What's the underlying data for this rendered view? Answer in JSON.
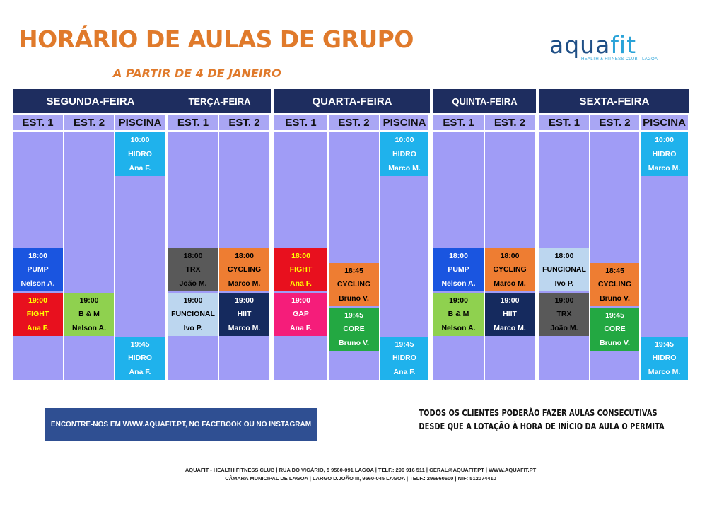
{
  "header": {
    "title": "HORÁRIO DE AULAS DE GRUPO",
    "subtitle": "A PARTIR DE 4 DE JANEIRO"
  },
  "logo": {
    "word_a": "aqua",
    "word_b": "fit",
    "tagline": "HEALTH & FITNESS CLUB · LAGOA"
  },
  "colors": {
    "header_navy": "#1e2d5f",
    "column_bg": "#a09cf6",
    "title_orange": "#e07a2b"
  },
  "schedule": {
    "days": [
      {
        "name": "SEGUNDA-FEIRA",
        "columns": [
          {
            "label": "EST. 1",
            "classes": [
              {
                "lines": [
                  "18:00",
                  "PUMP",
                  "Nelson A."
                ],
                "bg": "#1a55e0",
                "fg": "#ffffff"
              },
              {
                "lines": [
                  "19:00",
                  "FIGHT",
                  "Ana F."
                ],
                "bg": "#e8101e",
                "fg": "#ffff00"
              }
            ]
          },
          {
            "label": "EST. 2",
            "classes": [
              {
                "lines": [
                  "19:00",
                  "B & M",
                  "Nelson A."
                ],
                "bg": "#8fd14f",
                "fg": "#000000"
              }
            ]
          },
          {
            "label": "PISCINA",
            "classes": [
              {
                "lines": [
                  "10:00",
                  "HIDRO",
                  "Ana F."
                ],
                "bg": "#1fb2ec",
                "fg": "#ffffff"
              },
              {
                "lines": [
                  "19:45",
                  "HIDRO",
                  "Ana F."
                ],
                "bg": "#1fb2ec",
                "fg": "#ffffff"
              }
            ]
          }
        ]
      },
      {
        "name": "TERÇA-FEIRA",
        "columns": [
          {
            "label": "EST. 1",
            "classes": [
              {
                "lines": [
                  "18:00",
                  "TRX",
                  "João M."
                ],
                "bg": "#595959",
                "fg": "#000000"
              },
              {
                "lines": [
                  "19:00",
                  "FUNCIONAL",
                  "Ivo P."
                ],
                "bg": "#bcd6ef",
                "fg": "#000000"
              }
            ]
          },
          {
            "label": "EST. 2",
            "classes": [
              {
                "lines": [
                  "18:00",
                  "CYCLING",
                  "Marco M."
                ],
                "bg": "#ee7d32",
                "fg": "#000000"
              },
              {
                "lines": [
                  "19:00",
                  "HIIT",
                  "Marco M."
                ],
                "bg": "#152a5e",
                "fg": "#ffffff"
              }
            ]
          }
        ]
      },
      {
        "name": "QUARTA-FEIRA",
        "columns": [
          {
            "label": "EST. 1",
            "classes": [
              {
                "lines": [
                  "18:00",
                  "FIGHT",
                  "Ana F."
                ],
                "bg": "#e8101e",
                "fg": "#ffff00"
              },
              {
                "lines": [
                  "19:00",
                  "GAP",
                  "Ana F."
                ],
                "bg": "#f51d7a",
                "fg": "#ffffff"
              }
            ]
          },
          {
            "label": "EST. 2",
            "classes": [
              {
                "lines": [
                  "18:45",
                  "CYCLING",
                  "Bruno V."
                ],
                "bg": "#ee7d32",
                "fg": "#000000"
              },
              {
                "lines": [
                  "19:45",
                  "CORE",
                  "Bruno V."
                ],
                "bg": "#23a842",
                "fg": "#ffffff"
              }
            ]
          },
          {
            "label": "PISCINA",
            "classes": [
              {
                "lines": [
                  "10:00",
                  "HIDRO",
                  "Marco M."
                ],
                "bg": "#1fb2ec",
                "fg": "#ffffff"
              },
              {
                "lines": [
                  "19:45",
                  "HIDRO",
                  "Ana F."
                ],
                "bg": "#1fb2ec",
                "fg": "#ffffff"
              }
            ]
          }
        ]
      },
      {
        "name": "QUINTA-FEIRA",
        "columns": [
          {
            "label": "EST. 1",
            "classes": [
              {
                "lines": [
                  "18:00",
                  "PUMP",
                  "Nelson A."
                ],
                "bg": "#1a55e0",
                "fg": "#ffffff"
              },
              {
                "lines": [
                  "19:00",
                  "B & M",
                  "Nelson A."
                ],
                "bg": "#8fd14f",
                "fg": "#000000"
              }
            ]
          },
          {
            "label": "EST. 2",
            "classes": [
              {
                "lines": [
                  "18:00",
                  "CYCLING",
                  "Marco M."
                ],
                "bg": "#ee7d32",
                "fg": "#000000"
              },
              {
                "lines": [
                  "19:00",
                  "HIIT",
                  "Marco M."
                ],
                "bg": "#152a5e",
                "fg": "#ffffff"
              }
            ]
          }
        ]
      },
      {
        "name": "SEXTA-FEIRA",
        "columns": [
          {
            "label": "EST. 1",
            "classes": [
              {
                "lines": [
                  "18:00",
                  "FUNCIONAL",
                  "Ivo P."
                ],
                "bg": "#bcd6ef",
                "fg": "#000000"
              },
              {
                "lines": [
                  "19:00",
                  "TRX",
                  "João M."
                ],
                "bg": "#595959",
                "fg": "#000000"
              }
            ]
          },
          {
            "label": "EST. 2",
            "classes": [
              {
                "lines": [
                  "18:45",
                  "CYCLING",
                  "Bruno V."
                ],
                "bg": "#ee7d32",
                "fg": "#000000"
              },
              {
                "lines": [
                  "19:45",
                  "CORE",
                  "Bruno V."
                ],
                "bg": "#23a842",
                "fg": "#ffffff"
              }
            ]
          },
          {
            "label": "PISCINA",
            "classes": [
              {
                "lines": [
                  "10:00",
                  "HIDRO",
                  "Marco M."
                ],
                "bg": "#1fb2ec",
                "fg": "#ffffff"
              },
              {
                "lines": [
                  "19:45",
                  "HIDRO",
                  "Marco M."
                ],
                "bg": "#1fb2ec",
                "fg": "#ffffff"
              }
            ]
          }
        ]
      }
    ]
  },
  "banner": {
    "text": "ENCONTRE-NOS EM WWW.AQUAFIT.PT, NO FACEBOOK OU NO INSTAGRAM"
  },
  "notice": {
    "line1": "TODOS OS CLIENTES PODERÃO FAZER AULAS CONSECUTIVAS",
    "line2": "DESDE QUE A LOTAÇÃO À HORA DE INÍCIO DA AULA O PERMITA"
  },
  "footer": {
    "line1": "AQUAFIT - HEALTH FITNESS CLUB | RUA DO VIGÁRIO, 5 9560-091 LAGOA | TELF.: 296 916 511 | GERAL@AQUAFIT.PT | WWW.AQUAFIT.PT",
    "line2": "CÂMARA MUNICIPAL DE LAGOA | LARGO D.JOÃO III, 9560-045 LAGOA | TELF.: 296960600 | NIF: 512074410"
  }
}
